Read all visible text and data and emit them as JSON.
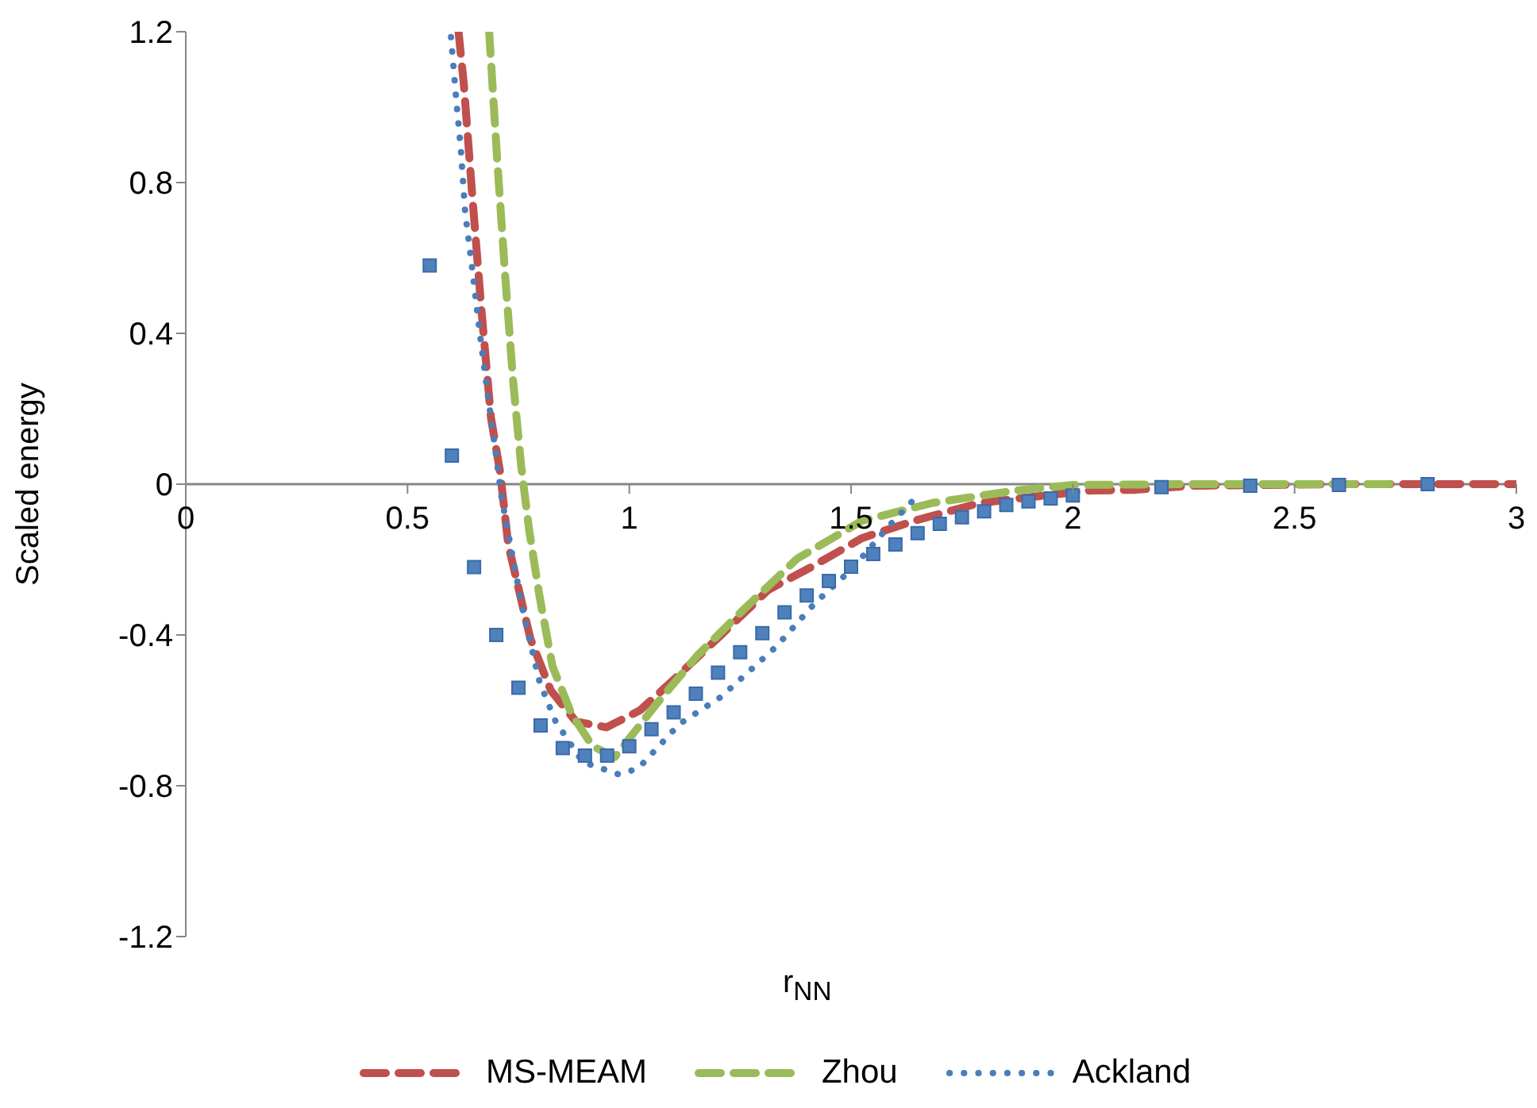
{
  "chart_data": {
    "type": "line",
    "xlabel": "r$_{NN}$",
    "ylabel": "Scaled  energy",
    "xlim": [
      0,
      3
    ],
    "xticks": [
      0,
      0.5,
      1,
      1.5,
      2,
      2.5,
      3
    ],
    "ylim": [
      -1.2,
      1.2
    ],
    "yticks": [
      -1.2,
      -0.8,
      -0.4,
      0,
      0.4,
      0.8,
      1.2
    ],
    "legend": "bottom",
    "series": [
      {
        "type": "scatter",
        "marker": "square",
        "color": "#4f81bd",
        "x": [
          0.55,
          0.6,
          0.65,
          0.7,
          0.75,
          0.8,
          0.85,
          0.9,
          0.95,
          1.0,
          1.05,
          1.1,
          1.15,
          1.2,
          1.25,
          1.3,
          1.35,
          1.4,
          1.45,
          1.5,
          1.55,
          1.6,
          1.65,
          1.7,
          1.75,
          1.8,
          1.85,
          1.9,
          1.95,
          2.0,
          2.2,
          2.4,
          2.6,
          2.8
        ],
        "values": [
          0.58,
          0.076,
          -0.22,
          -0.4,
          -0.54,
          -0.64,
          -0.7,
          -0.72,
          -0.72,
          -0.695,
          -0.65,
          -0.605,
          -0.556,
          -0.5,
          -0.446,
          -0.395,
          -0.34,
          -0.295,
          -0.257,
          -0.219,
          -0.185,
          -0.16,
          -0.13,
          -0.105,
          -0.088,
          -0.072,
          -0.055,
          -0.046,
          -0.038,
          -0.03,
          -0.008,
          -0.004,
          -0.002,
          0
        ]
      },
      {
        "name": "MS-MEAM",
        "color": "#c0504d",
        "line_style": "dashed",
        "marker": "none",
        "x": [
          0.615,
          0.627,
          0.645,
          0.666,
          0.688,
          0.709,
          0.727,
          0.748,
          0.777,
          0.823,
          0.88,
          0.949,
          1.024,
          1.099,
          1.207,
          1.314,
          1.41,
          1.525,
          1.643,
          1.79,
          1.936,
          2.04,
          2.14,
          2.27,
          2.6,
          3.0
        ],
        "values": [
          1.2,
          1.06,
          0.78,
          0.47,
          0.177,
          0.03,
          -0.16,
          -0.265,
          -0.41,
          -0.547,
          -0.63,
          -0.645,
          -0.6,
          -0.52,
          -0.4,
          -0.28,
          -0.22,
          -0.143,
          -0.097,
          -0.05,
          -0.03,
          -0.017,
          -0.015,
          -0.004,
          0,
          0
        ]
      },
      {
        "name": "Zhou",
        "color": "#9bbb59",
        "line_style": "dashed",
        "marker": "none",
        "x": [
          0.684,
          0.702,
          0.72,
          0.738,
          0.756,
          0.774,
          0.798,
          0.827,
          0.87,
          0.917,
          0.967,
          1.06,
          1.153,
          1.26,
          1.378,
          1.525,
          1.683,
          1.87,
          2.0,
          2.27,
          2.72
        ],
        "values": [
          1.2,
          0.863,
          0.555,
          0.274,
          0.05,
          -0.12,
          -0.3,
          -0.484,
          -0.61,
          -0.695,
          -0.724,
          -0.585,
          -0.455,
          -0.33,
          -0.198,
          -0.097,
          -0.05,
          -0.017,
          -0.002,
          0,
          0
        ]
      },
      {
        "name": "Ackland",
        "color": "#4a7ebb",
        "line_style": "dotted",
        "marker": "none",
        "x": [
          0.598,
          0.609,
          0.62,
          0.63,
          0.645,
          0.662,
          0.68,
          0.698,
          0.712,
          0.738,
          0.762,
          0.798,
          0.834,
          0.895,
          0.977,
          1.02,
          1.113,
          1.207,
          1.332,
          1.418,
          1.5,
          1.59,
          1.65
        ],
        "values": [
          1.186,
          1.03,
          0.89,
          0.72,
          0.58,
          0.41,
          0.245,
          0.09,
          -0.035,
          -0.2,
          -0.345,
          -0.526,
          -0.63,
          -0.737,
          -0.77,
          -0.754,
          -0.636,
          -0.564,
          -0.43,
          -0.316,
          -0.227,
          -0.105,
          -0.03
        ]
      }
    ]
  }
}
